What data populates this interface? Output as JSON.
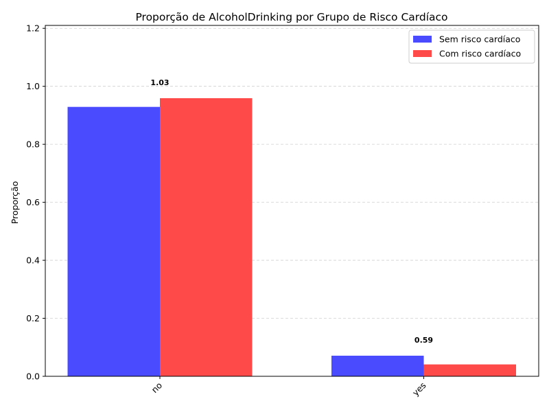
{
  "chart_data": {
    "type": "bar",
    "title": "Proporção de AlcoholDrinking por Grupo de Risco Cardíaco",
    "xlabel": "",
    "ylabel": "Proporção",
    "categories": [
      "no",
      "yes"
    ],
    "series": [
      {
        "name": "Sem risco cardíaco",
        "values": [
          0.929,
          0.071
        ],
        "color": "#4a4aff"
      },
      {
        "name": "Com risco cardíaco",
        "values": [
          0.959,
          0.041
        ],
        "color": "#ff4a4a"
      }
    ],
    "ylim": [
      0,
      1.21
    ],
    "yticks": [
      "0.0",
      "0.2",
      "0.4",
      "0.6",
      "0.8",
      "1.0",
      "1.2"
    ],
    "grid": true,
    "legend_position": "top-right",
    "annotations": [
      {
        "category": "no",
        "text": "1.03"
      },
      {
        "category": "yes",
        "text": "0.59"
      }
    ]
  }
}
